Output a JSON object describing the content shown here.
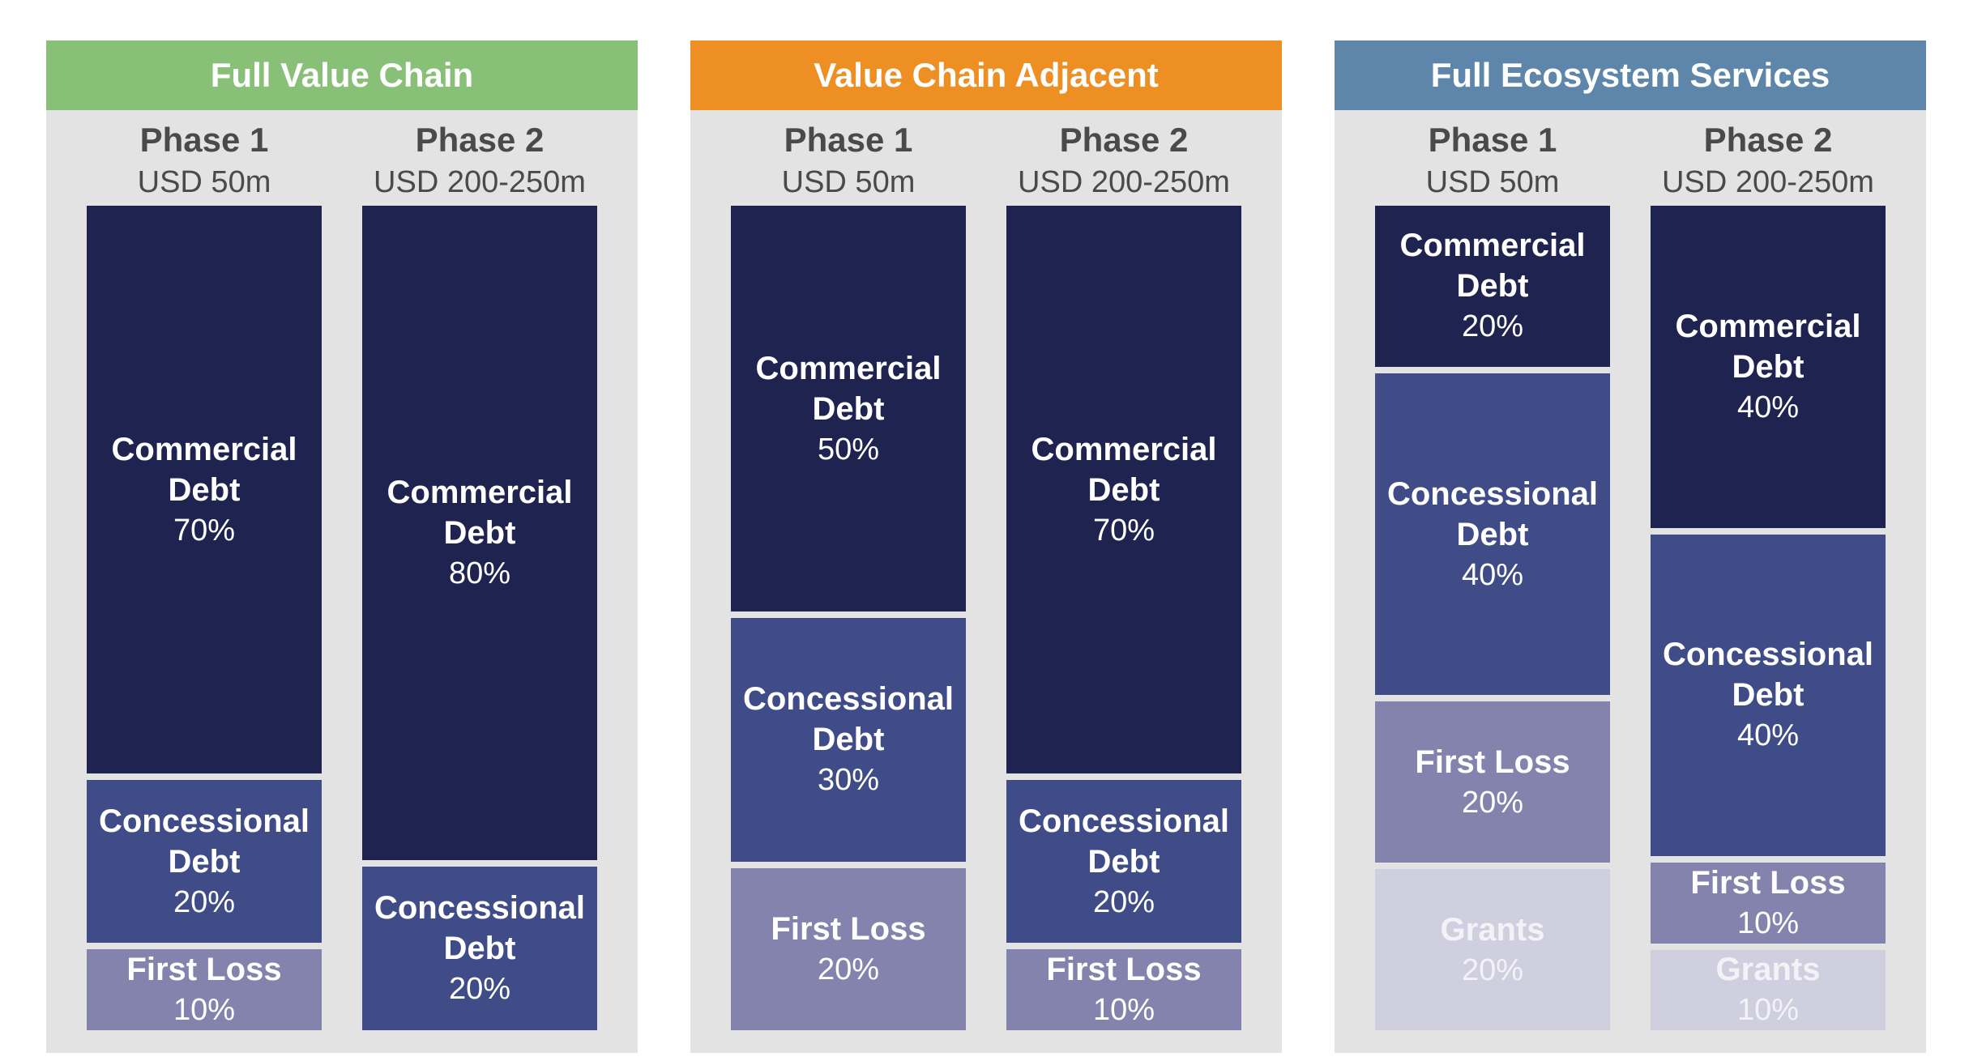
{
  "colors": {
    "Commercial Debt": "#1f2350",
    "Concessional Debt": "#3f4c87",
    "First Loss": "#8483ad",
    "Grants": "#cfcfe0"
  },
  "chart_data": [
    {
      "type": "bar",
      "stacked": true,
      "title": "Full Value Chain",
      "header_color": "#88c078",
      "categories": [
        "Phase 1",
        "Phase 2"
      ],
      "category_subtitles": [
        "USD 50m",
        "USD 200-250m"
      ],
      "series": [
        {
          "name": "Commercial Debt",
          "values": [
            70,
            80
          ]
        },
        {
          "name": "Concessional Debt",
          "values": [
            20,
            20
          ]
        },
        {
          "name": "First Loss",
          "values": [
            10,
            0
          ]
        },
        {
          "name": "Grants",
          "values": [
            0,
            0
          ]
        }
      ]
    },
    {
      "type": "bar",
      "stacked": true,
      "title": "Value Chain Adjacent",
      "header_color": "#ee8f24",
      "categories": [
        "Phase 1",
        "Phase 2"
      ],
      "category_subtitles": [
        "USD 50m",
        "USD 200-250m"
      ],
      "series": [
        {
          "name": "Commercial Debt",
          "values": [
            50,
            70
          ]
        },
        {
          "name": "Concessional Debt",
          "values": [
            30,
            20
          ]
        },
        {
          "name": "First Loss",
          "values": [
            20,
            10
          ]
        },
        {
          "name": "Grants",
          "values": [
            0,
            0
          ]
        }
      ]
    },
    {
      "type": "bar",
      "stacked": true,
      "title": "Full Ecosystem Services",
      "header_color": "#5e86ab",
      "categories": [
        "Phase 1",
        "Phase 2"
      ],
      "category_subtitles": [
        "USD 50m",
        "USD 200-250m"
      ],
      "series": [
        {
          "name": "Commercial Debt",
          "values": [
            20,
            40
          ]
        },
        {
          "name": "Concessional Debt",
          "values": [
            40,
            40
          ]
        },
        {
          "name": "First Loss",
          "values": [
            20,
            10
          ]
        },
        {
          "name": "Grants",
          "values": [
            20,
            10
          ]
        }
      ]
    }
  ]
}
